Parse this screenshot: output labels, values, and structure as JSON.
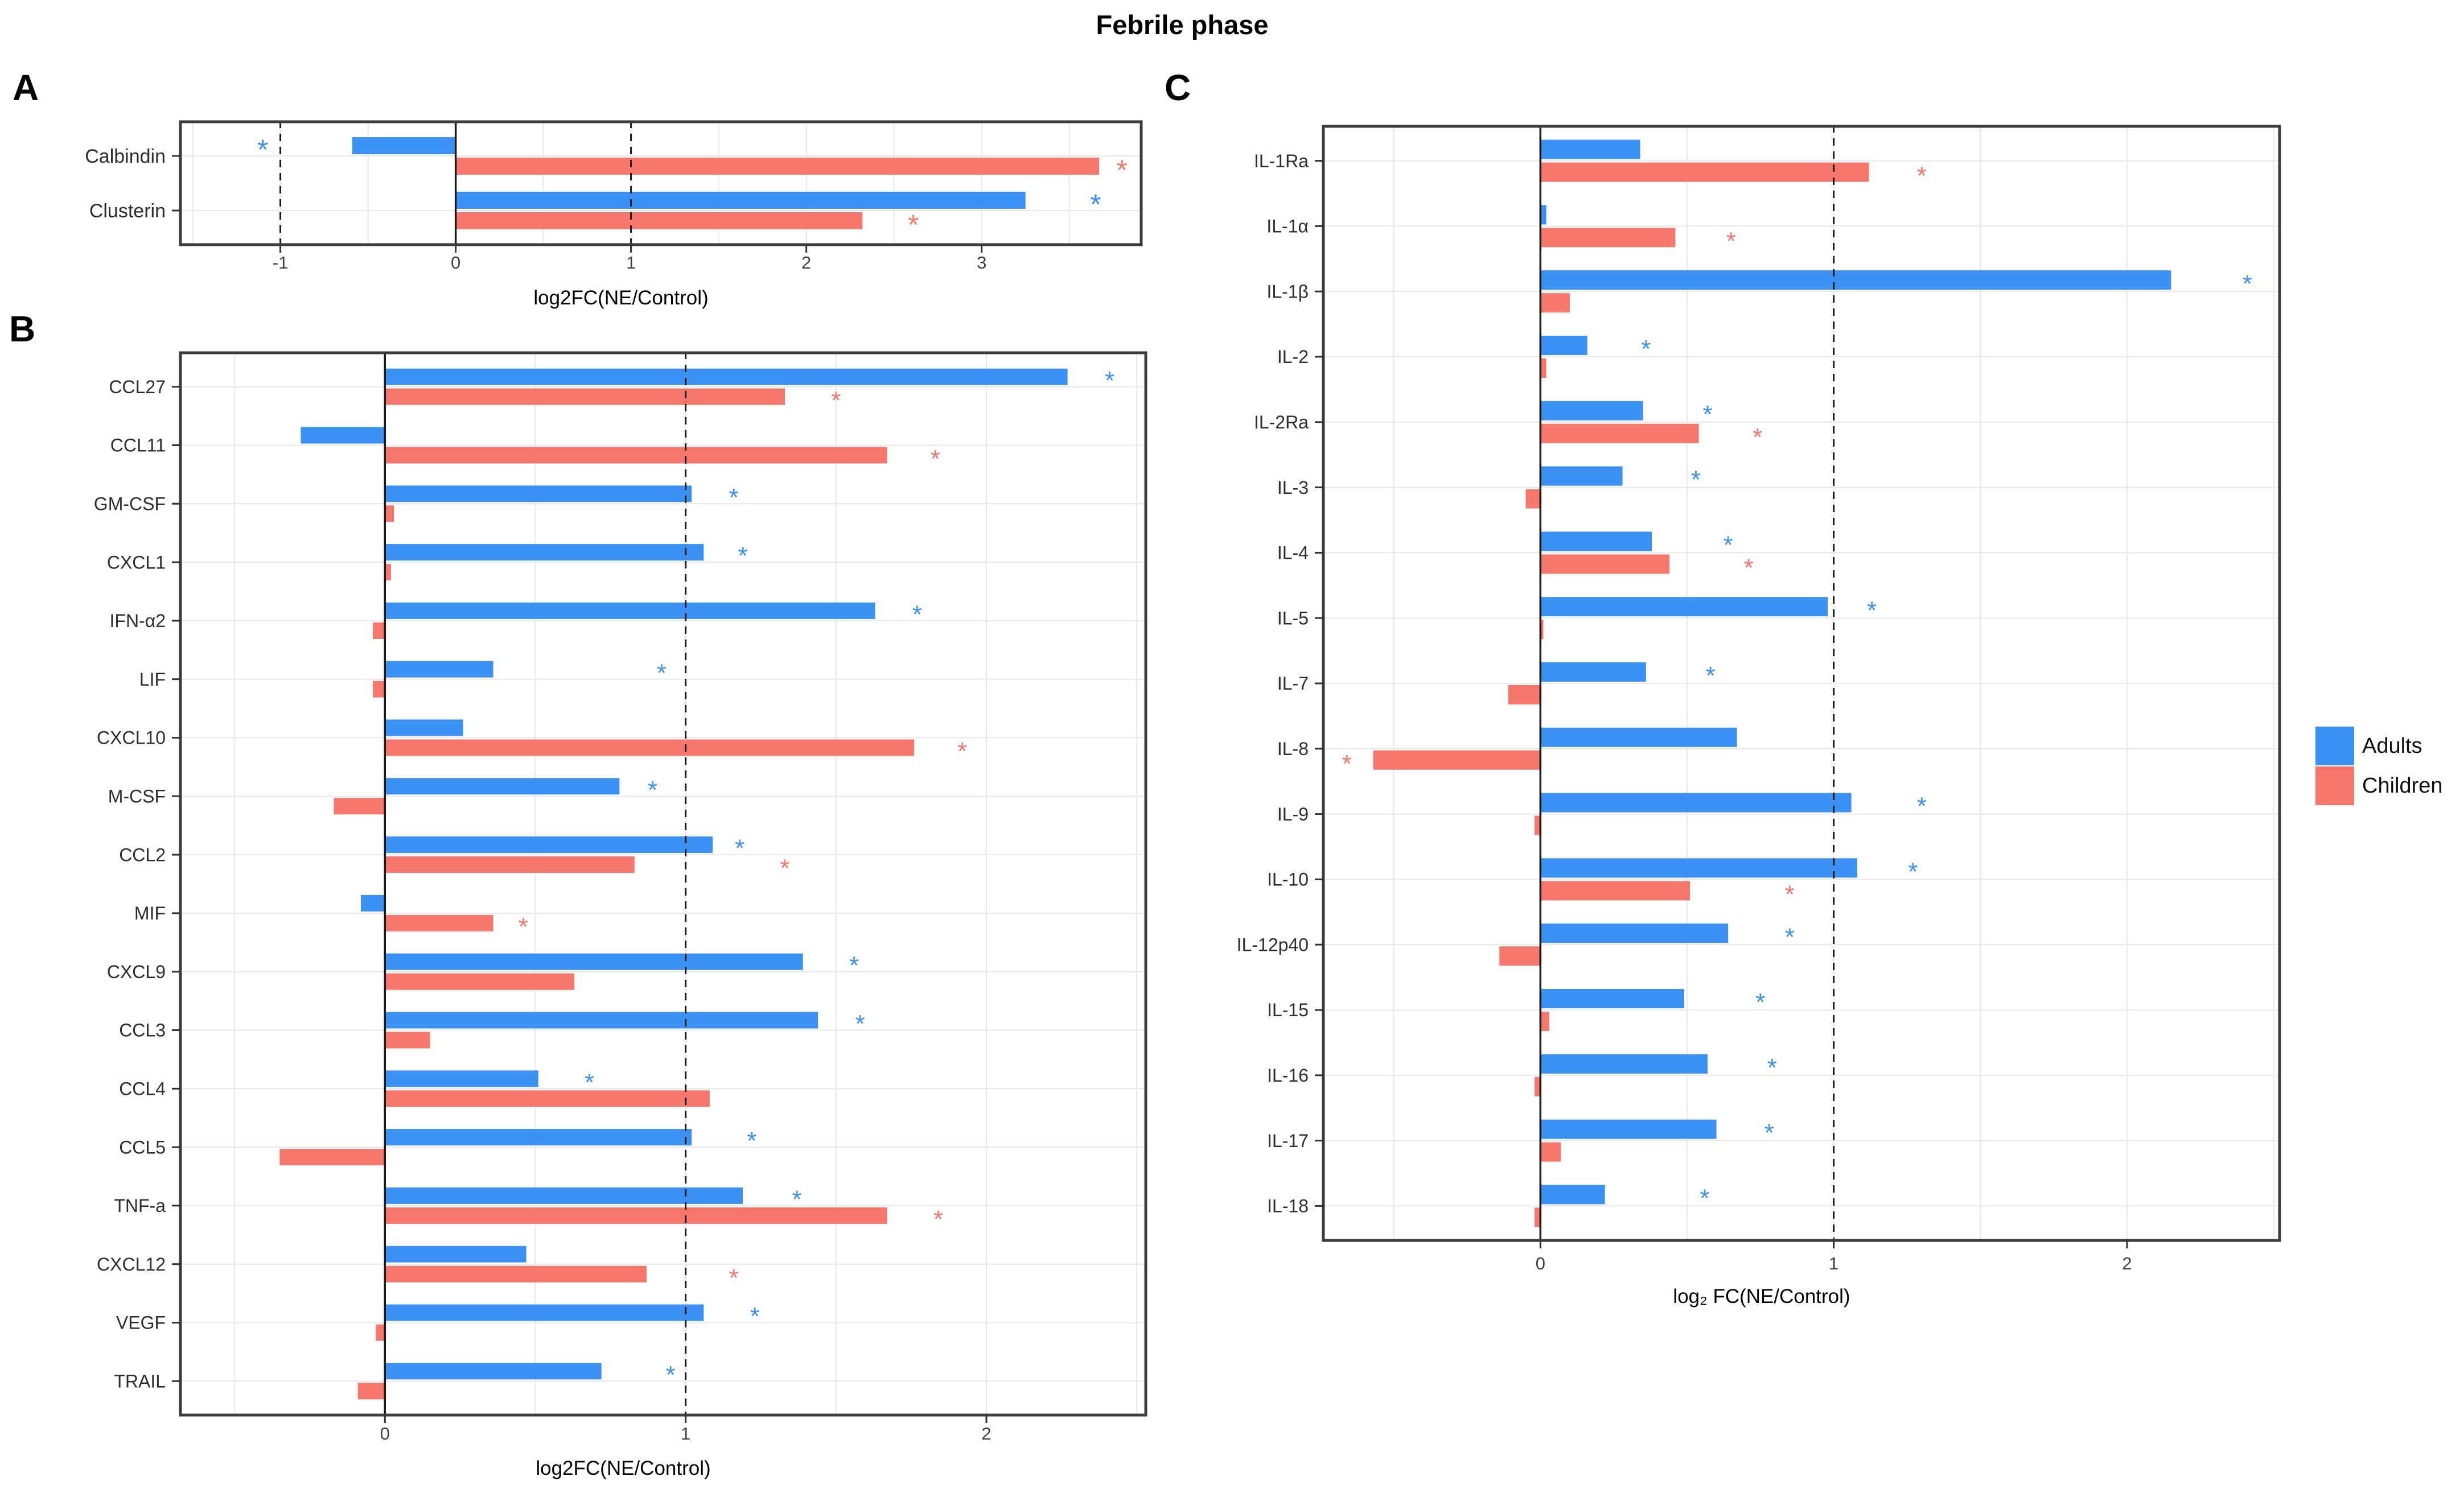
{
  "title": "Febrile phase",
  "panel_labels": [
    "A",
    "B",
    "C"
  ],
  "significance_marker": "*",
  "legend": {
    "position": "right",
    "items": [
      {
        "label": "Adults",
        "color": "#3B91F4"
      },
      {
        "label": "Children",
        "color": "#F8776D"
      }
    ]
  },
  "chart_data": [
    {
      "panel": "A",
      "type": "bar",
      "orientation": "horizontal",
      "title": "",
      "xlabel": "log2FC(NE/Control)",
      "ylabel": "",
      "xlim": [
        -1.57,
        3.91
      ],
      "xticks": [
        -1,
        0,
        1,
        2,
        3
      ],
      "solid_line_x": 0,
      "dashed_lines_x": [
        -1,
        1
      ],
      "grid_step": 0.5,
      "grid": true,
      "categories": [
        "Calbindin",
        "Clusterin"
      ],
      "series": [
        {
          "name": "Adults",
          "color": "#3B91F4",
          "values": [
            -0.59,
            3.25
          ],
          "sig_star_x": [
            -1.1,
            3.65
          ]
        },
        {
          "name": "Children",
          "color": "#F8776D",
          "values": [
            3.67,
            2.32
          ],
          "sig_star_x": [
            3.8,
            2.61
          ]
        }
      ]
    },
    {
      "panel": "B",
      "type": "bar",
      "orientation": "horizontal",
      "title": "",
      "xlabel": "log2FC(NE/Control)",
      "ylabel": "",
      "xlim": [
        -0.68,
        2.53
      ],
      "xticks": [
        0,
        1,
        2
      ],
      "solid_line_x": 0,
      "dashed_lines_x": [
        1
      ],
      "grid_step": 0.5,
      "grid": true,
      "categories": [
        "CCL27",
        "CCL11",
        "GM-CSF",
        "CXCL1",
        "IFN-α2",
        "LIF",
        "CXCL10",
        "M-CSF",
        "CCL2",
        "MIF",
        "CXCL9",
        "CCL3",
        "CCL4",
        "CCL5",
        "TNF-a",
        "CXCL12",
        "VEGF",
        "TRAIL"
      ],
      "series": [
        {
          "name": "Adults",
          "color": "#3B91F4",
          "values": [
            2.27,
            -0.28,
            1.02,
            1.06,
            1.63,
            0.36,
            0.26,
            0.78,
            1.09,
            -0.08,
            1.39,
            1.44,
            0.51,
            1.02,
            1.19,
            0.47,
            1.06,
            0.72
          ],
          "sig_star_x": [
            2.41,
            null,
            1.16,
            1.19,
            1.77,
            0.92,
            null,
            0.89,
            1.18,
            null,
            1.56,
            1.58,
            0.68,
            1.22,
            1.37,
            null,
            1.23,
            0.95
          ]
        },
        {
          "name": "Children",
          "color": "#F8776D",
          "values": [
            1.33,
            1.67,
            0.03,
            0.02,
            -0.04,
            -0.04,
            1.76,
            -0.17,
            0.83,
            0.36,
            0.63,
            0.15,
            1.08,
            -0.35,
            1.67,
            0.87,
            -0.03,
            -0.09
          ],
          "sig_star_x": [
            1.5,
            1.83,
            null,
            null,
            null,
            null,
            1.92,
            null,
            1.33,
            0.46,
            null,
            null,
            null,
            null,
            1.84,
            1.16,
            null,
            null
          ]
        }
      ]
    },
    {
      "panel": "C",
      "type": "bar",
      "orientation": "horizontal",
      "title": "",
      "xlabel": "log₂ FC(NE/Control)",
      "ylabel": "",
      "xlim": [
        -0.74,
        2.52
      ],
      "xticks": [
        0,
        1,
        2
      ],
      "solid_line_x": 0,
      "dashed_lines_x": [
        1
      ],
      "grid_step": 0.5,
      "grid": true,
      "categories": [
        "IL-1Ra",
        "IL-1α",
        "IL-1β",
        "IL-2",
        "IL-2Ra",
        "IL-3",
        "IL-4",
        "IL-5",
        "IL-7",
        "IL-8",
        "IL-9",
        "IL-10",
        "IL-12p40",
        "IL-15",
        "IL-16",
        "IL-17",
        "IL-18"
      ],
      "series": [
        {
          "name": "Adults",
          "color": "#3B91F4",
          "values": [
            0.34,
            0.02,
            2.15,
            0.16,
            0.35,
            0.28,
            0.38,
            0.98,
            0.36,
            0.67,
            1.06,
            1.08,
            0.64,
            0.49,
            0.57,
            0.6,
            0.22
          ],
          "sig_star_x": [
            null,
            null,
            2.41,
            0.36,
            0.57,
            0.53,
            0.64,
            1.13,
            0.58,
            null,
            1.3,
            1.27,
            0.85,
            0.75,
            0.79,
            0.78,
            0.56
          ]
        },
        {
          "name": "Children",
          "color": "#F8776D",
          "values": [
            1.12,
            0.46,
            0.1,
            0.02,
            0.54,
            -0.05,
            0.44,
            0.01,
            -0.11,
            -0.57,
            -0.02,
            0.51,
            -0.14,
            0.03,
            -0.02,
            0.07,
            -0.02
          ],
          "sig_star_x": [
            1.3,
            0.65,
            null,
            null,
            0.74,
            null,
            0.71,
            null,
            null,
            -0.66,
            null,
            0.85,
            null,
            null,
            null,
            null,
            null
          ]
        }
      ]
    }
  ]
}
